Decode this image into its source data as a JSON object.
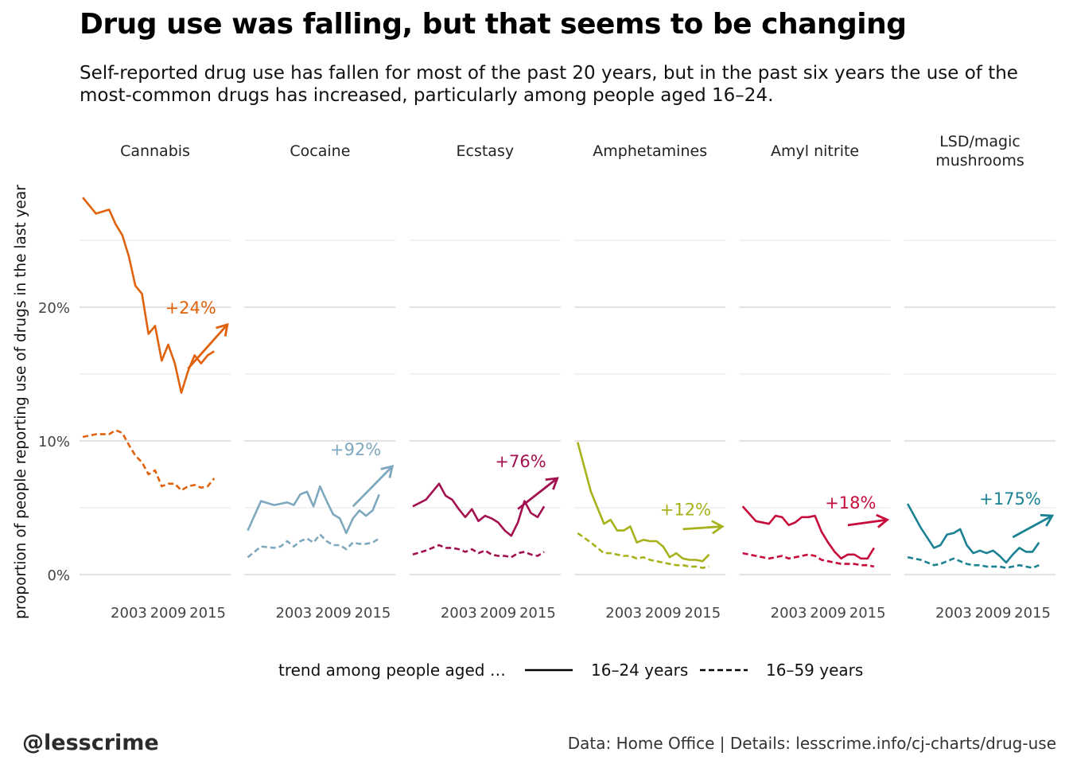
{
  "title": "Drug use was falling, but that seems to be changing",
  "subtitle": "Self-reported drug use has fallen for most of the past 20 years, but in the past six years the use of the most-common drugs has increased, particularly among people aged 16–24.",
  "credit": "@lesscrime",
  "source": "Data: Home Office |  Details: lesscrime.info/cj-charts/drug-use",
  "chart_data": {
    "type": "line",
    "ylabel": "proportion of people reporting use of drugs in the last year",
    "y_ticks": [
      0,
      10,
      20
    ],
    "y_tick_labels": [
      "0%",
      "10%",
      "20%"
    ],
    "ylim": [
      0,
      28.5
    ],
    "xlim": [
      1995.5,
      2018.5
    ],
    "x_ticks": [
      2003,
      2009,
      2015
    ],
    "x_tick_labels": [
      "2003",
      "2009",
      "2015"
    ],
    "grid": true,
    "legend": {
      "title": "trend among people aged …",
      "entries": [
        {
          "label": "16–24 years",
          "style": "solid"
        },
        {
          "label": "16–59 years",
          "style": "dashed"
        }
      ],
      "placement": "bottom"
    },
    "years": [
      1996,
      1998,
      2000,
      2001,
      2002,
      2003,
      2004,
      2005,
      2006,
      2007,
      2008,
      2009,
      2010,
      2011,
      2012,
      2013,
      2014,
      2015,
      2016,
      2017,
      2018
    ],
    "panels": [
      {
        "name": "Cannabis",
        "color": "#e0620d",
        "change": "+24%",
        "arrow": [
          [
            2012,
            15.4
          ],
          [
            2018,
            18.7
          ]
        ],
        "series": [
          {
            "name": "16–24 years",
            "style": "solid",
            "values": [
              28.2,
              27.0,
              27.3,
              26.2,
              25.4,
              23.8,
              21.6,
              21.0,
              18.0,
              18.6,
              16.0,
              17.2,
              15.8,
              13.6,
              15.2,
              16.4,
              15.8,
              16.4,
              16.7,
              null,
              null
            ]
          },
          {
            "name": "16–59 years",
            "style": "dashed",
            "values": [
              10.3,
              10.5,
              10.5,
              10.8,
              10.6,
              9.7,
              8.9,
              8.4,
              7.5,
              7.8,
              6.6,
              6.8,
              6.8,
              6.3,
              6.6,
              6.7,
              6.5,
              6.6,
              7.2,
              null,
              null
            ]
          }
        ]
      },
      {
        "name": "Cocaine",
        "color": "#7ea8bf",
        "change": "+92%",
        "arrow": [
          [
            2012,
            5.1
          ],
          [
            2018,
            8.1
          ]
        ],
        "series": [
          {
            "name": "16–24 years",
            "style": "solid",
            "values": [
              3.3,
              5.5,
              5.2,
              5.3,
              5.4,
              5.2,
              6.0,
              6.2,
              5.1,
              6.6,
              5.5,
              4.5,
              4.2,
              3.1,
              4.2,
              4.8,
              4.4,
              4.8,
              6.0,
              null,
              null
            ]
          },
          {
            "name": "16–59 years",
            "style": "dashed",
            "values": [
              1.3,
              2.1,
              2.0,
              2.1,
              2.5,
              2.1,
              2.5,
              2.7,
              2.4,
              3.0,
              2.5,
              2.2,
              2.2,
              1.9,
              2.4,
              2.3,
              2.3,
              2.4,
              2.7,
              null,
              null
            ]
          }
        ]
      },
      {
        "name": "Ecstasy",
        "color": "#a2104f",
        "change": "+76%",
        "arrow": [
          [
            2012,
            4.9
          ],
          [
            2018,
            7.2
          ]
        ],
        "series": [
          {
            "name": "16–24 years",
            "style": "solid",
            "values": [
              5.1,
              5.6,
              6.8,
              5.9,
              5.6,
              4.9,
              4.3,
              4.9,
              4.0,
              4.4,
              4.2,
              3.9,
              3.3,
              2.9,
              3.9,
              5.5,
              4.6,
              4.3,
              5.1,
              null,
              null
            ]
          },
          {
            "name": "16–59 years",
            "style": "dashed",
            "values": [
              1.5,
              1.8,
              2.2,
              2.0,
              2.0,
              1.9,
              1.7,
              1.9,
              1.6,
              1.8,
              1.5,
              1.4,
              1.4,
              1.3,
              1.6,
              1.7,
              1.5,
              1.4,
              1.7,
              null,
              null
            ]
          }
        ]
      },
      {
        "name": "Amphetamines",
        "color": "#a7b21b",
        "change": "+12%",
        "arrow": [
          [
            2012,
            3.4
          ],
          [
            2018,
            3.6
          ]
        ],
        "series": [
          {
            "name": "16–24 years",
            "style": "solid",
            "values": [
              9.9,
              6.2,
              3.8,
              4.1,
              3.3,
              3.3,
              3.6,
              2.4,
              2.6,
              2.5,
              2.5,
              2.1,
              1.3,
              1.6,
              1.2,
              1.1,
              1.1,
              1.0,
              1.5,
              null,
              null
            ]
          },
          {
            "name": "16–59 years",
            "style": "dashed",
            "values": [
              3.1,
              2.4,
              1.6,
              1.6,
              1.5,
              1.4,
              1.4,
              1.2,
              1.3,
              1.1,
              1.0,
              0.9,
              0.8,
              0.7,
              0.7,
              0.6,
              0.6,
              0.5,
              0.6,
              null,
              null
            ]
          }
        ]
      },
      {
        "name": "Amyl nitrite",
        "color": "#c70c3b",
        "change": "+18%",
        "arrow": [
          [
            2012,
            3.7
          ],
          [
            2018,
            4.1
          ]
        ],
        "series": [
          {
            "name": "16–24 years",
            "style": "solid",
            "values": [
              5.1,
              4.0,
              3.8,
              4.4,
              4.3,
              3.7,
              3.9,
              4.3,
              4.3,
              4.4,
              3.2,
              2.4,
              1.7,
              1.2,
              1.5,
              1.5,
              1.2,
              1.2,
              2.0,
              null,
              null
            ]
          },
          {
            "name": "16–59 years",
            "style": "dashed",
            "values": [
              1.6,
              1.4,
              1.2,
              1.3,
              1.4,
              1.2,
              1.3,
              1.4,
              1.5,
              1.4,
              1.1,
              1.0,
              0.9,
              0.8,
              0.8,
              0.8,
              0.7,
              0.7,
              0.6,
              null,
              null
            ]
          }
        ]
      },
      {
        "name": "LSD/magic mushrooms",
        "color": "#1a8292",
        "change": "+175%",
        "arrow": [
          [
            2012,
            2.8
          ],
          [
            2018,
            4.4
          ]
        ],
        "series": [
          {
            "name": "16–24 years",
            "style": "solid",
            "values": [
              5.3,
              3.5,
              2.0,
              2.2,
              3.0,
              3.1,
              3.4,
              2.2,
              1.6,
              1.8,
              1.6,
              1.8,
              1.4,
              0.9,
              1.5,
              2.0,
              1.7,
              1.7,
              2.4,
              null,
              null
            ]
          },
          {
            "name": "16–59 years",
            "style": "dashed",
            "values": [
              1.3,
              1.1,
              0.7,
              0.8,
              1.0,
              1.2,
              1.0,
              0.8,
              0.7,
              0.7,
              0.6,
              0.6,
              0.6,
              0.5,
              0.6,
              0.7,
              0.6,
              0.5,
              0.7,
              null,
              null
            ]
          }
        ]
      }
    ]
  }
}
